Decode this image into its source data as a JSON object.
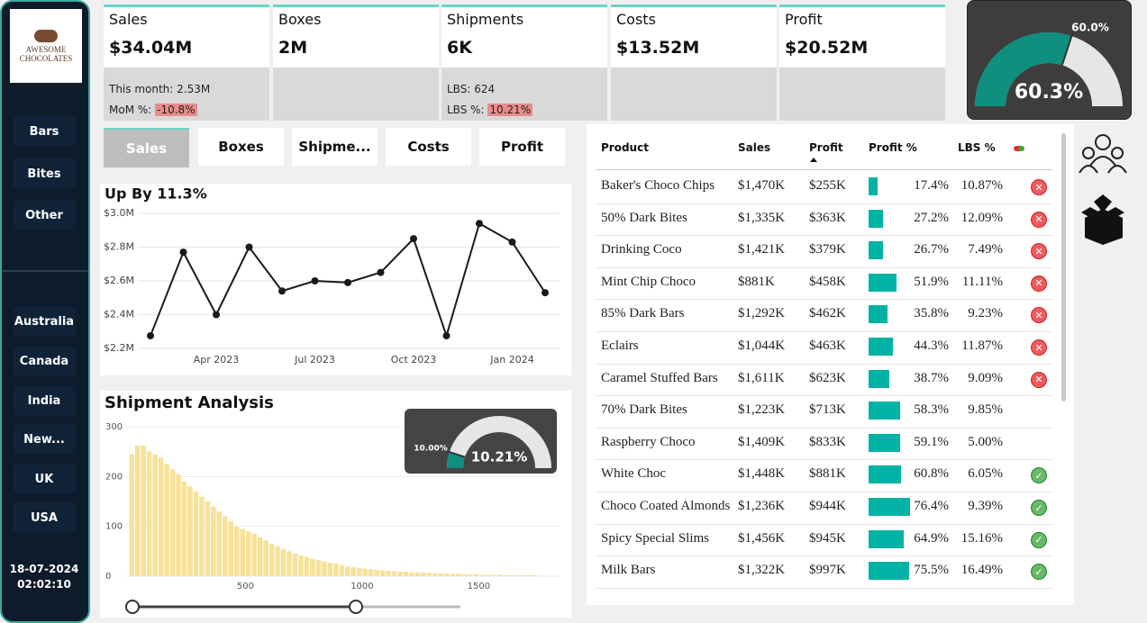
{
  "sidebar": {
    "logo": "AWESOME CHOCOLATES",
    "products": [
      "Bars",
      "Bites",
      "Other"
    ],
    "countries": [
      "Australia",
      "Canada",
      "India",
      "New...",
      "UK",
      "USA"
    ],
    "date": "18-07-2024",
    "time": "02:02:10"
  },
  "kpis": [
    {
      "label": "Sales",
      "value": "$34.04M",
      "notes": [
        {
          "label": "This month:",
          "value": "2.53M"
        },
        {
          "label": "MoM %:",
          "value": "-10.8%",
          "highlight": true
        }
      ]
    },
    {
      "label": "Boxes",
      "value": "2M",
      "notes": []
    },
    {
      "label": "Shipments",
      "value": "6K",
      "notes": [
        {
          "label": "LBS:",
          "value": "624"
        },
        {
          "label": "LBS %:",
          "value": "10.21%",
          "highlight": true
        }
      ]
    },
    {
      "label": "Costs",
      "value": "$13.52M",
      "notes": []
    },
    {
      "label": "Profit",
      "value": "$20.52M",
      "notes": []
    }
  ],
  "gauge": {
    "value": 60.3,
    "label": "60.3%",
    "target": 60.0,
    "target_label": "60.0%"
  },
  "tabs": {
    "items": [
      "Sales",
      "Boxes",
      "Shipme...",
      "Costs",
      "Profit"
    ],
    "selected": 0
  },
  "chart_data": [
    {
      "type": "line",
      "title": "Up By 11.3%",
      "color": "#1a1a1a",
      "x": [
        "2023-02",
        "2023-03",
        "2023-04",
        "2023-05",
        "2023-06",
        "2023-07",
        "2023-08",
        "2023-09",
        "2023-10",
        "2023-11",
        "2023-12",
        "2024-01",
        "2024-02"
      ],
      "values": [
        2.275,
        2.77,
        2.4,
        2.8,
        2.54,
        2.6,
        2.59,
        2.65,
        2.85,
        2.275,
        2.94,
        2.83,
        2.53
      ],
      "xticks": [
        {
          "value": "2023-04",
          "label": "Apr 2023"
        },
        {
          "value": "2023-07",
          "label": "Jul 2023"
        },
        {
          "value": "2023-10",
          "label": "Oct 2023"
        },
        {
          "value": "2024-01",
          "label": "Jan 2024"
        }
      ],
      "ylim": [
        2.2,
        3.0
      ],
      "yticks": [
        {
          "value": 2.2,
          "label": "$2.2M"
        },
        {
          "value": 2.4,
          "label": "$2.4M"
        },
        {
          "value": 2.6,
          "label": "$2.6M"
        },
        {
          "value": 2.8,
          "label": "$2.8M"
        },
        {
          "value": 3.0,
          "label": "$3.0M"
        }
      ],
      "grid": true
    },
    {
      "type": "histogram",
      "title": "Shipment Analysis",
      "color": "#f7e29a",
      "bins": [
        0,
        25,
        50,
        75,
        100,
        125,
        150,
        175,
        200,
        225,
        250,
        275,
        300,
        325,
        350,
        375,
        400,
        425,
        450,
        475,
        500,
        525,
        550,
        575,
        600,
        625,
        650,
        675,
        700,
        725,
        750,
        775,
        800,
        825,
        850,
        875,
        900,
        925,
        950,
        975,
        1000,
        1025,
        1050,
        1075,
        1100,
        1125,
        1150,
        1175,
        1200,
        1225,
        1250,
        1275,
        1300,
        1325,
        1350,
        1375,
        1400,
        1425,
        1450,
        1475,
        1500,
        1525,
        1550,
        1575,
        1600,
        1625,
        1650,
        1675,
        1700,
        1725,
        1750
      ],
      "counts": [
        245,
        262,
        262,
        250,
        245,
        238,
        225,
        215,
        205,
        190,
        180,
        170,
        160,
        150,
        140,
        130,
        120,
        110,
        100,
        95,
        90,
        85,
        78,
        72,
        65,
        60,
        55,
        50,
        45,
        42,
        38,
        35,
        32,
        30,
        27,
        25,
        22,
        20,
        18,
        17,
        15,
        14,
        13,
        12,
        11,
        10,
        9,
        9,
        8,
        8,
        7,
        7,
        6,
        6,
        5,
        5,
        5,
        4,
        4,
        4,
        3,
        3,
        3,
        3,
        2,
        2,
        2,
        2,
        2,
        2
      ],
      "xlim": [
        0,
        1850
      ],
      "xticks": [
        500,
        1000,
        1500
      ],
      "ylim": [
        0,
        300
      ],
      "yticks": [
        0,
        100,
        200,
        300
      ]
    }
  ],
  "shipment_gauge": {
    "value": 10.21,
    "label": "10.21%",
    "target": 10.0,
    "target_label": "10.00%"
  },
  "table": {
    "columns": [
      "Product",
      "Sales",
      "Profit",
      "Profit %",
      "LBS %"
    ],
    "bar_color": "#00b3a4",
    "rows": [
      {
        "product": "Baker's Choco Chips",
        "sales": "$1,470K",
        "profit": "$255K",
        "profit_pct": 17.4,
        "profit_pct_label": "17.4%",
        "lbs": "10.87%",
        "status": "x"
      },
      {
        "product": "50% Dark Bites",
        "sales": "$1,335K",
        "profit": "$363K",
        "profit_pct": 27.2,
        "profit_pct_label": "27.2%",
        "lbs": "12.09%",
        "status": "x"
      },
      {
        "product": "Drinking Coco",
        "sales": "$1,421K",
        "profit": "$379K",
        "profit_pct": 26.7,
        "profit_pct_label": "26.7%",
        "lbs": "7.49%",
        "status": "x"
      },
      {
        "product": "Mint Chip Choco",
        "sales": "$881K",
        "profit": "$458K",
        "profit_pct": 51.9,
        "profit_pct_label": "51.9%",
        "lbs": "11.11%",
        "status": "x"
      },
      {
        "product": "85% Dark Bars",
        "sales": "$1,292K",
        "profit": "$462K",
        "profit_pct": 35.8,
        "profit_pct_label": "35.8%",
        "lbs": "9.23%",
        "status": "x"
      },
      {
        "product": "Eclairs",
        "sales": "$1,044K",
        "profit": "$463K",
        "profit_pct": 44.3,
        "profit_pct_label": "44.3%",
        "lbs": "11.87%",
        "status": "x"
      },
      {
        "product": "Caramel Stuffed Bars",
        "sales": "$1,611K",
        "profit": "$623K",
        "profit_pct": 38.7,
        "profit_pct_label": "38.7%",
        "lbs": "9.09%",
        "status": "x"
      },
      {
        "product": "70% Dark Bites",
        "sales": "$1,223K",
        "profit": "$713K",
        "profit_pct": 58.3,
        "profit_pct_label": "58.3%",
        "lbs": "9.85%",
        "status": null
      },
      {
        "product": "Raspberry Choco",
        "sales": "$1,409K",
        "profit": "$833K",
        "profit_pct": 59.1,
        "profit_pct_label": "59.1%",
        "lbs": "5.00%",
        "status": null
      },
      {
        "product": "White Choc",
        "sales": "$1,448K",
        "profit": "$881K",
        "profit_pct": 60.8,
        "profit_pct_label": "60.8%",
        "lbs": "6.05%",
        "status": "check"
      },
      {
        "product": "Choco Coated Almonds",
        "sales": "$1,236K",
        "profit": "$944K",
        "profit_pct": 76.4,
        "profit_pct_label": "76.4%",
        "lbs": "9.39%",
        "status": "check"
      },
      {
        "product": "Spicy Special Slims",
        "sales": "$1,456K",
        "profit": "$945K",
        "profit_pct": 64.9,
        "profit_pct_label": "64.9%",
        "lbs": "15.16%",
        "status": "check"
      },
      {
        "product": "Milk Bars",
        "sales": "$1,322K",
        "profit": "$997K",
        "profit_pct": 75.5,
        "profit_pct_label": "75.5%",
        "lbs": "16.49%",
        "status": "check"
      }
    ]
  }
}
